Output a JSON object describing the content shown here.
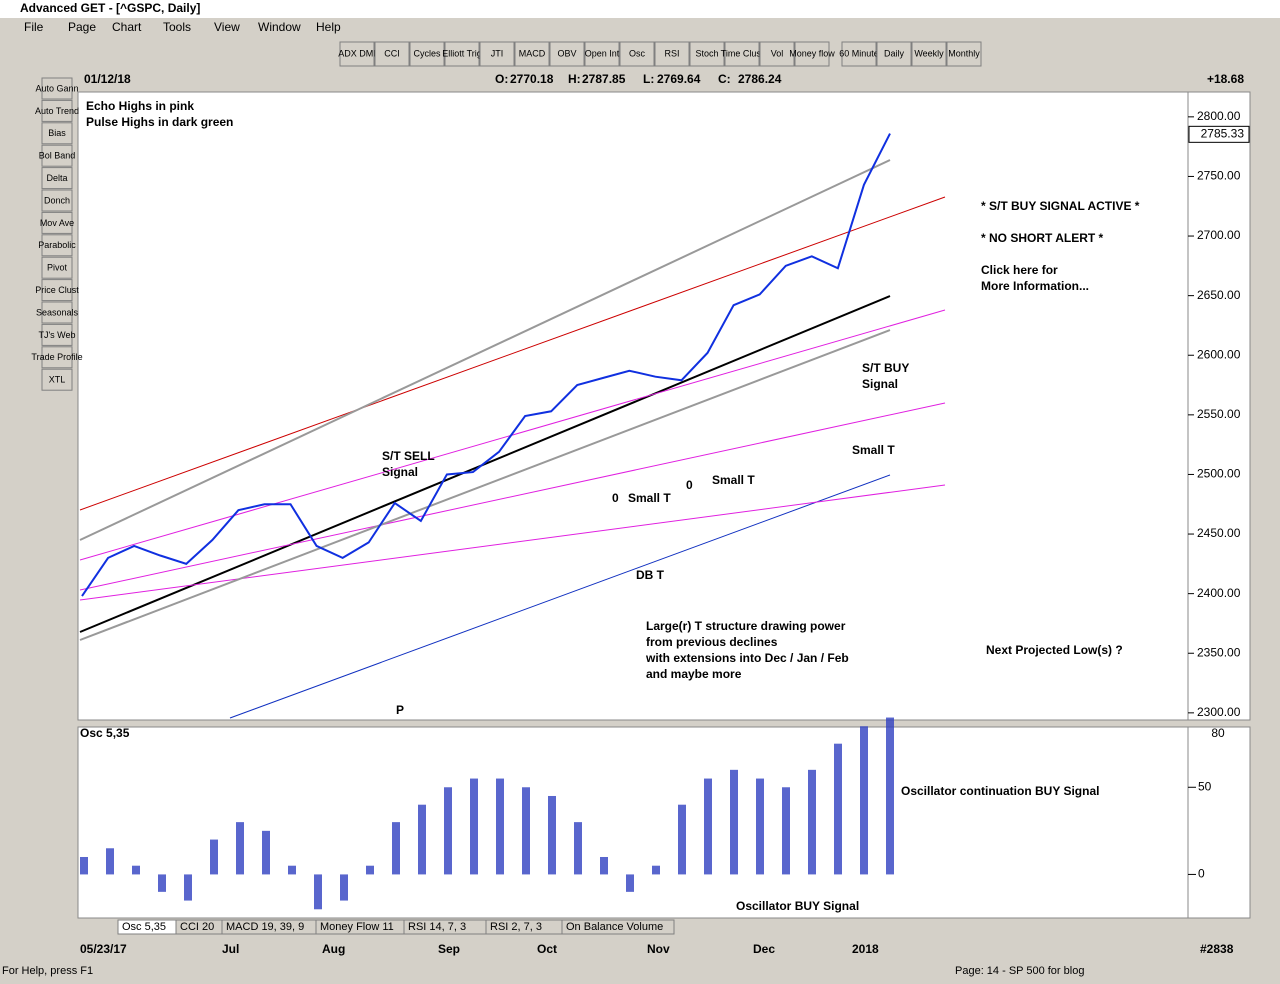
{
  "window": {
    "title": "Advanced GET - [^GSPC, Daily]",
    "menu": [
      "File",
      "Page",
      "Chart",
      "Tools",
      "View",
      "Window",
      "Help"
    ]
  },
  "toolbar": [
    "ADX DMI",
    "CCI",
    "Cycles",
    "Elliott Trig",
    "JTI",
    "MACD",
    "OBV",
    "Open Int",
    "Osc",
    "RSI",
    "Stoch",
    "Time Clust",
    "Vol",
    "Money flow",
    "60 Minute",
    "Daily",
    "Weekly",
    "Monthly"
  ],
  "sidebar": [
    "Auto Gann",
    "Auto Trend",
    "Bias",
    "Bol Band",
    "Delta",
    "Donch",
    "Mov Ave",
    "Parabolic",
    "Pivot",
    "Price Clust",
    "Seasonals",
    "TJ's Web",
    "Trade Profile",
    "XTL"
  ],
  "quote": {
    "date": "01/12/18",
    "open_label": "O:",
    "open": 2770.18,
    "high_label": "H:",
    "high": 2787.85,
    "low_label": "L:",
    "low": 2769.64,
    "close_label": "C:",
    "close": 2786.24,
    "change": "+18.68",
    "last": 2785.33
  },
  "price_chart": {
    "ylim": [
      2294,
      2820
    ],
    "yticks": [
      {
        "value": 2300,
        "label": "2300.00"
      },
      {
        "value": 2350,
        "label": "2350.00"
      },
      {
        "value": 2400,
        "label": "2400.00"
      },
      {
        "value": 2450,
        "label": "2450.00"
      },
      {
        "value": 2500,
        "label": "2500.00"
      },
      {
        "value": 2550,
        "label": "2550.00"
      },
      {
        "value": 2600,
        "label": "2600.00"
      },
      {
        "value": 2650,
        "label": "2650.00"
      },
      {
        "value": 2700,
        "label": "2700.00"
      },
      {
        "value": 2750,
        "label": "2750.00"
      },
      {
        "value": 2800,
        "label": "2800.00"
      }
    ],
    "closes": [
      2398,
      2430,
      2440,
      2432,
      2425,
      2445,
      2470,
      2475,
      2475,
      2440,
      2430,
      2443,
      2476,
      2461,
      2500,
      2502,
      2519,
      2549,
      2553,
      2575,
      2581,
      2587,
      2582,
      2579,
      2602,
      2642,
      2651,
      2675,
      2683,
      2673,
      2743,
      2786
    ],
    "annotations": [
      "Echo Highs in pink",
      "Pulse Highs in dark green",
      "* S/T BUY SIGNAL ACTIVE *",
      "* NO SHORT ALERT *",
      "Click here for",
      "More Information...",
      "S/T SELL",
      "Signal",
      "S/T BUY",
      "Signal",
      "Small T",
      "Small T",
      "0",
      "0",
      "Small  T",
      "DB T",
      "Large(r) T structure drawing power",
      "from previous declines",
      "with extensions into Dec / Jan / Feb",
      "and maybe more",
      "Next Projected Low(s) ?",
      "P"
    ]
  },
  "osc_chart": {
    "label": "Osc 5,35",
    "ylim": [
      -25,
      84
    ],
    "yticks": [
      0,
      50
    ],
    "current": 80,
    "values": [
      10,
      15,
      5,
      -10,
      -15,
      20,
      30,
      25,
      5,
      -20,
      -15,
      5,
      30,
      40,
      50,
      55,
      55,
      50,
      45,
      30,
      10,
      -10,
      5,
      40,
      55,
      60,
      55,
      50,
      60,
      75,
      85,
      90
    ],
    "annotations": [
      "Oscillator continuation BUY Signal",
      "Oscillator BUY Signal"
    ]
  },
  "tabs": [
    "Osc 5,35",
    "CCI 20",
    "MACD 19, 39, 9",
    "Money Flow 11",
    "RSI 14, 7, 3",
    "RSI 2, 7, 3",
    "On Balance Volume"
  ],
  "date_axis": [
    "05/23/17",
    "Jul",
    "Aug",
    "Sep",
    "Oct",
    "Nov",
    "Dec",
    "2018"
  ],
  "bar_count": "#2838",
  "status": {
    "help": "For Help, press F1",
    "page": "Page: 14 - SP 500 for blog"
  }
}
